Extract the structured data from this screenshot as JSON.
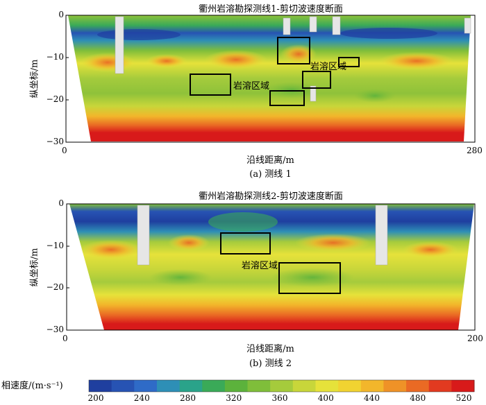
{
  "charts": [
    {
      "id": "line1",
      "title": "衢州岩溶勘探测线1-剪切波速度断面",
      "xlabel": "沿线距离/m",
      "ylabel": "纵坐标/m",
      "caption": "(a) 测线 1",
      "x_ticks": [
        "0",
        "280"
      ],
      "y_ticks": [
        "0",
        "−10",
        "−20",
        "−30"
      ],
      "annotations": [
        "岩溶区域",
        "岩溶区域"
      ]
    },
    {
      "id": "line2",
      "title": "衢州岩溶勘探测线2-剪切波速度断面",
      "xlabel": "沿线距离/m",
      "ylabel": "纵坐标/m",
      "caption": "(b) 测线 2",
      "x_ticks": [
        "0",
        "200"
      ],
      "y_ticks": [
        "0",
        "−10",
        "−20",
        "−30"
      ],
      "annotations": [
        "岩溶区域"
      ]
    }
  ],
  "colorbar": {
    "label": "相速度/(m·s⁻¹)",
    "ticks": [
      "200",
      "240",
      "280",
      "320",
      "360",
      "400",
      "440",
      "480",
      "520"
    ],
    "colors": [
      "#1f3f9f",
      "#2753b3",
      "#2f6bc7",
      "#2e8fb6",
      "#2aa38a",
      "#3aaa58",
      "#5cb23c",
      "#7fbe3a",
      "#a5cb3c",
      "#c8d63a",
      "#e6e23a",
      "#f1d331",
      "#f2b62b",
      "#ef9227",
      "#ea6a24",
      "#e23a20",
      "#d81a1a"
    ]
  },
  "chart_data": [
    {
      "type": "heatmap",
      "title": "衢州岩溶勘探测线1-剪切波速度断面",
      "xlabel": "沿线距离/m",
      "ylabel": "纵坐标/m",
      "xlim": [
        0,
        280
      ],
      "ylim": [
        -30,
        0
      ],
      "value_range": [
        200,
        520
      ],
      "layers": [
        {
          "depth": [
            0,
            -5
          ],
          "velocity": 260
        },
        {
          "depth": [
            -5,
            -9
          ],
          "velocity": 380
        },
        {
          "depth": [
            -9,
            -13
          ],
          "velocity": 430
        },
        {
          "depth": [
            -13,
            -20
          ],
          "velocity": 360
        },
        {
          "depth": [
            -20,
            -25
          ],
          "velocity": 450
        },
        {
          "depth": [
            -25,
            -30
          ],
          "velocity": 510
        }
      ],
      "karst_zones": [
        {
          "x": [
            86,
            114
          ],
          "y": [
            -14,
            -19
          ]
        },
        {
          "x": [
            146,
            170
          ],
          "y": [
            -18,
            -21
          ]
        },
        {
          "x": [
            146,
            166
          ],
          "y": [
            -5,
            -11
          ]
        },
        {
          "x": [
            166,
            186
          ],
          "y": [
            -13,
            -17
          ]
        },
        {
          "x": [
            189,
            202
          ],
          "y": [
            -10,
            -12
          ]
        }
      ]
    },
    {
      "type": "heatmap",
      "title": "衢州岩溶勘探测线2-剪切波速度断面",
      "xlabel": "沿线距离/m",
      "ylabel": "纵坐标/m",
      "xlim": [
        0,
        200
      ],
      "ylim": [
        -30,
        0
      ],
      "value_range": [
        200,
        520
      ],
      "layers": [
        {
          "depth": [
            0,
            -6
          ],
          "velocity": 250
        },
        {
          "depth": [
            -6,
            -12
          ],
          "velocity": 420
        },
        {
          "depth": [
            -12,
            -21
          ],
          "velocity": 390
        },
        {
          "depth": [
            -21,
            -25
          ],
          "velocity": 450
        },
        {
          "depth": [
            -25,
            -30
          ],
          "velocity": 510
        }
      ],
      "karst_zones": [
        {
          "x": [
            76,
            101
          ],
          "y": [
            -7,
            -12
          ]
        },
        {
          "x": [
            105,
            134
          ],
          "y": [
            -14,
            -21
          ]
        }
      ]
    }
  ]
}
